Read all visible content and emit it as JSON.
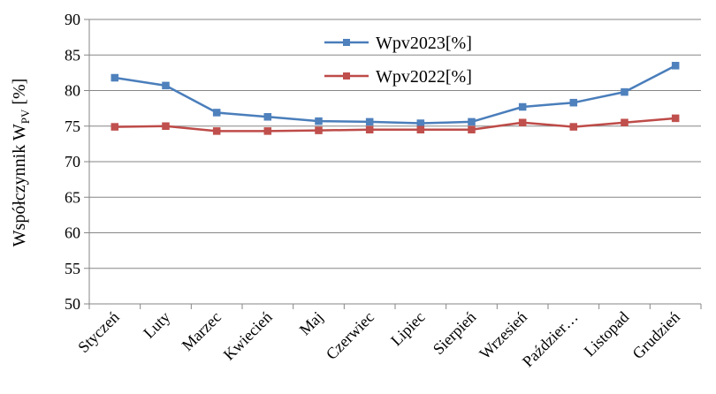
{
  "chart_data": {
    "type": "line",
    "title": "",
    "xlabel": "",
    "ylabel_main": "Współczynnik W",
    "ylabel_sub": "PV",
    "ylabel_unit": " [%]",
    "ylim": [
      50,
      90
    ],
    "ytick_step": 5,
    "grid": "horizontal",
    "legend_position": "top-center",
    "categories": [
      "Styczeń",
      "Luty",
      "Marzec",
      "Kwiecień",
      "Maj",
      "Czerwiec",
      "Lipiec",
      "Sierpień",
      "Wrzesień",
      "Paździer…",
      "Listopad",
      "Grudzień"
    ],
    "series": [
      {
        "name": "Wpv2023[%]",
        "color": "#4a7ebb",
        "marker_color": "#4f81bd",
        "values": [
          81.8,
          80.7,
          76.9,
          76.3,
          75.7,
          75.6,
          75.4,
          75.6,
          77.7,
          78.3,
          79.8,
          83.5
        ]
      },
      {
        "name": "Wpv2022[%]",
        "color": "#be4b48",
        "marker_color": "#c0504d",
        "values": [
          74.9,
          75.0,
          74.3,
          74.3,
          74.4,
          74.5,
          74.5,
          74.5,
          75.5,
          74.9,
          75.5,
          76.1
        ]
      }
    ]
  }
}
